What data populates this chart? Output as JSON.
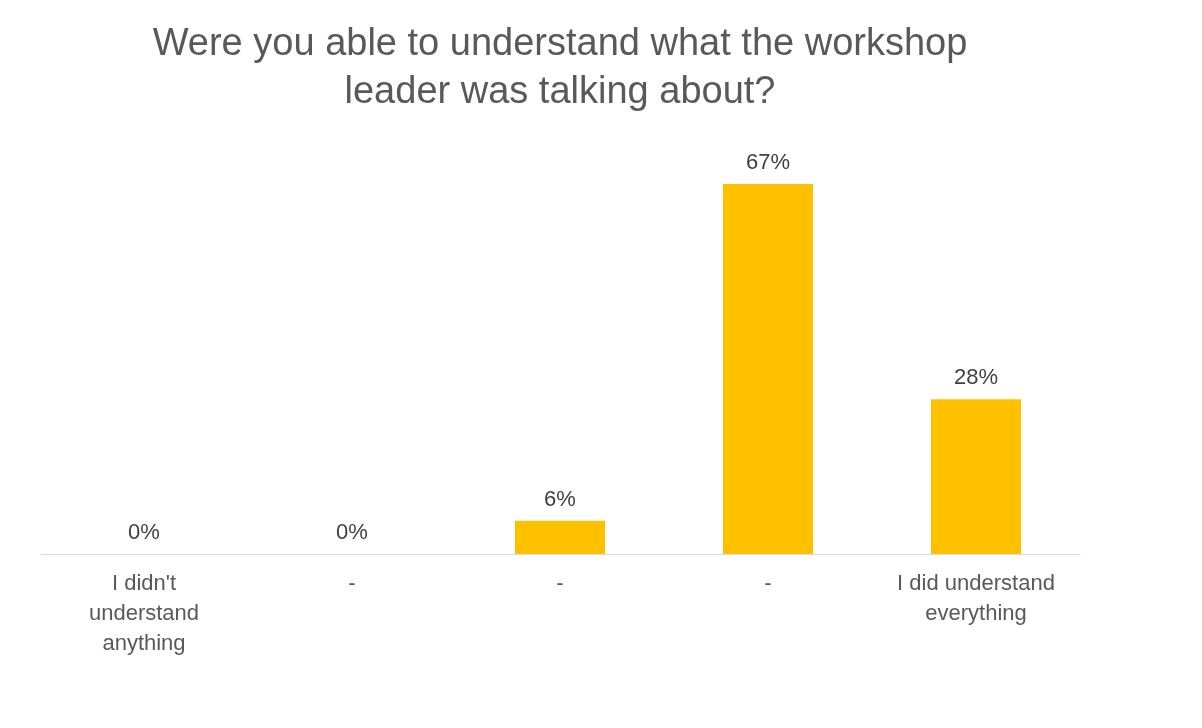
{
  "chart_data": {
    "type": "bar",
    "title": "Were you able to understand what the workshop leader was talking about?",
    "categories": [
      "I didn't understand anything",
      "-",
      "-",
      "-",
      "I did understand everything"
    ],
    "values": [
      0,
      0,
      6,
      67,
      28
    ],
    "value_labels": [
      "0%",
      "0%",
      "6%",
      "67%",
      "28%"
    ],
    "color": "#ffc000"
  }
}
